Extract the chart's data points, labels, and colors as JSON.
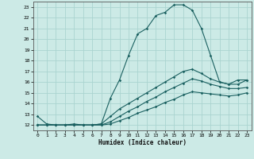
{
  "xlabel": "Humidex (Indice chaleur)",
  "ylabel": "",
  "bg_color": "#cceae6",
  "grid_color": "#aad4d0",
  "line_color": "#1a6060",
  "xlim": [
    -0.5,
    23.5
  ],
  "ylim": [
    11.5,
    23.5
  ],
  "xticks": [
    0,
    1,
    2,
    3,
    4,
    5,
    6,
    7,
    8,
    9,
    10,
    11,
    12,
    13,
    14,
    15,
    16,
    17,
    18,
    19,
    20,
    21,
    22,
    23
  ],
  "yticks": [
    12,
    13,
    14,
    15,
    16,
    17,
    18,
    19,
    20,
    21,
    22,
    23
  ],
  "line1_x": [
    0,
    1,
    2,
    3,
    4,
    5,
    6,
    7,
    8,
    9,
    10,
    11,
    12,
    13,
    14,
    15,
    16,
    17,
    18,
    19,
    20,
    21,
    22,
    23
  ],
  "line1_y": [
    12.8,
    12.1,
    12.0,
    12.0,
    12.1,
    12.0,
    12.0,
    12.1,
    14.5,
    16.2,
    18.5,
    20.5,
    21.0,
    22.2,
    22.5,
    23.2,
    23.2,
    22.7,
    21.0,
    18.5,
    16.0,
    15.8,
    16.2,
    16.2
  ],
  "line2_x": [
    0,
    1,
    2,
    3,
    4,
    5,
    6,
    7,
    8,
    9,
    10,
    11,
    12,
    13,
    14,
    15,
    16,
    17,
    18,
    19,
    20,
    21,
    22,
    23
  ],
  "line2_y": [
    12.0,
    12.0,
    12.0,
    12.0,
    12.0,
    12.0,
    12.0,
    12.1,
    12.8,
    13.5,
    14.0,
    14.5,
    15.0,
    15.5,
    16.0,
    16.5,
    17.0,
    17.2,
    16.8,
    16.3,
    16.0,
    15.8,
    15.8,
    16.2
  ],
  "line3_x": [
    0,
    1,
    2,
    3,
    4,
    5,
    6,
    7,
    8,
    9,
    10,
    11,
    12,
    13,
    14,
    15,
    16,
    17,
    18,
    19,
    20,
    21,
    22,
    23
  ],
  "line3_y": [
    12.0,
    12.0,
    12.0,
    12.0,
    12.0,
    12.0,
    12.0,
    12.0,
    12.3,
    12.8,
    13.3,
    13.7,
    14.2,
    14.6,
    15.1,
    15.5,
    15.9,
    16.3,
    16.1,
    15.8,
    15.6,
    15.4,
    15.4,
    15.5
  ],
  "line4_x": [
    0,
    1,
    2,
    3,
    4,
    5,
    6,
    7,
    8,
    9,
    10,
    11,
    12,
    13,
    14,
    15,
    16,
    17,
    18,
    19,
    20,
    21,
    22,
    23
  ],
  "line4_y": [
    12.0,
    12.0,
    12.0,
    12.0,
    12.0,
    12.0,
    12.0,
    12.0,
    12.1,
    12.4,
    12.7,
    13.1,
    13.4,
    13.7,
    14.1,
    14.4,
    14.8,
    15.1,
    15.0,
    14.9,
    14.8,
    14.7,
    14.8,
    15.0
  ]
}
